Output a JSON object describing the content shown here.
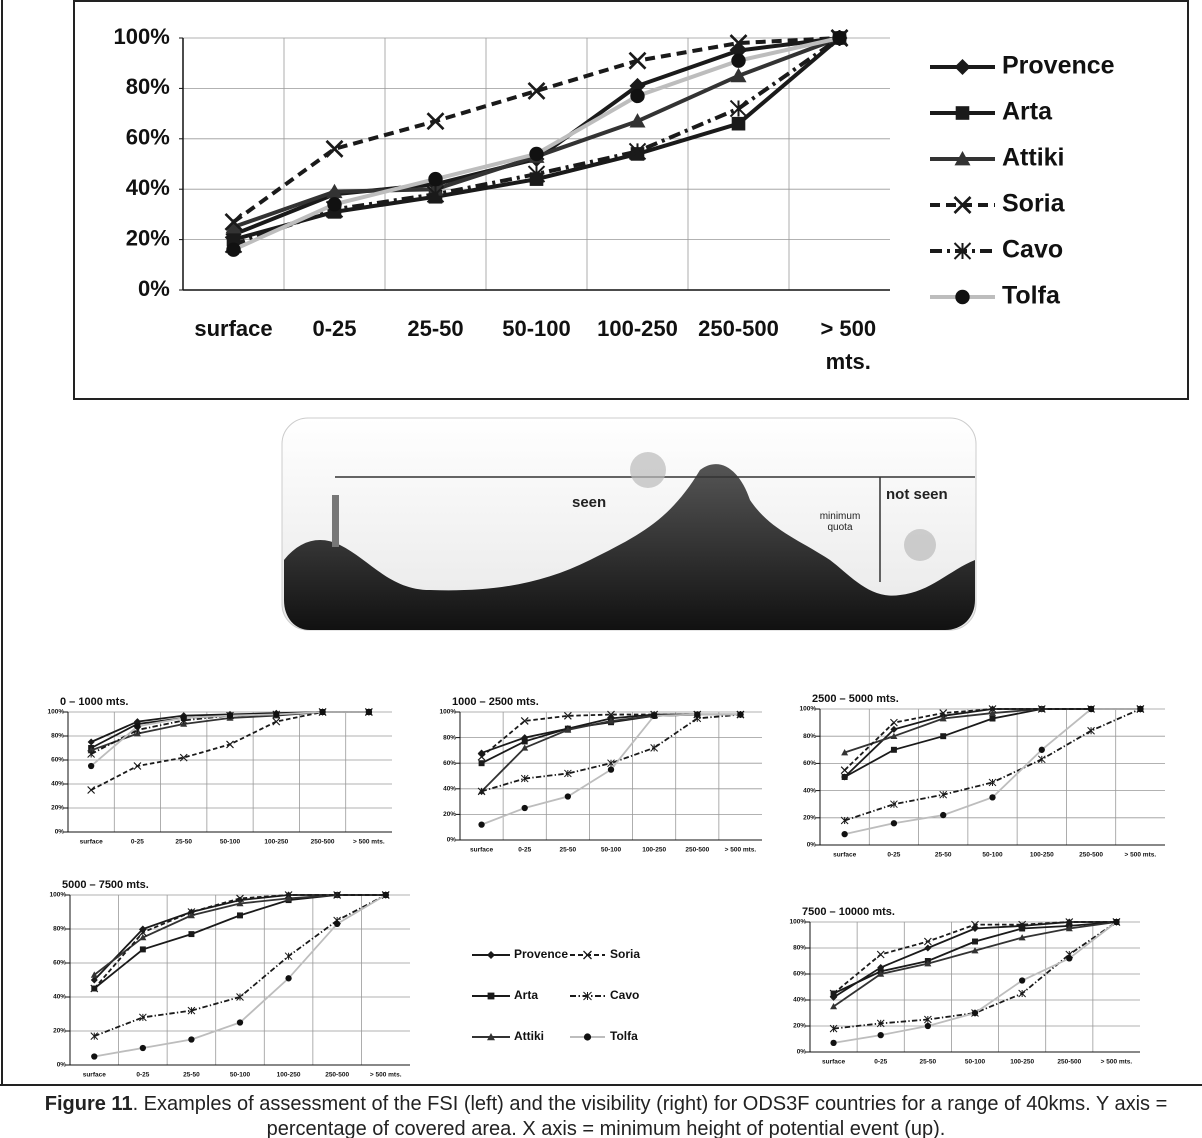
{
  "chart_data": [
    {
      "type": "line",
      "categories": [
        "surface",
        "0-25",
        "25-50",
        "50-100",
        "100-250",
        "250-500",
        "> 500 mts."
      ],
      "ylim": [
        0,
        100
      ],
      "yticks": [
        {
          "value": 0,
          "label": "0%"
        },
        {
          "value": 20,
          "label": "20%"
        },
        {
          "value": 40,
          "label": "40%"
        },
        {
          "value": 60,
          "label": "60%"
        },
        {
          "value": 80,
          "label": "80%"
        },
        {
          "value": 100,
          "label": "100%"
        }
      ],
      "grid": true,
      "legend": "right",
      "series": [
        {
          "name": "Provence",
          "color": "#1a1a1a",
          "marker": "diamond",
          "line_style": "solid",
          "values": [
            22,
            38,
            42,
            52,
            81,
            95,
            100
          ]
        },
        {
          "name": "Arta",
          "color": "#1a1a1a",
          "marker": "square",
          "line_style": "solid",
          "values": [
            20,
            31,
            37,
            44,
            54,
            66,
            100
          ]
        },
        {
          "name": "Attiki",
          "color": "#333333",
          "marker": "triangle",
          "line_style": "solid",
          "values": [
            25,
            39,
            40,
            53,
            67,
            85,
            100
          ]
        },
        {
          "name": "Soria",
          "color": "#1a1a1a",
          "marker": "x",
          "line_style": "dashed",
          "values": [
            27,
            56,
            67,
            79,
            91,
            98,
            100
          ]
        },
        {
          "name": "Cavo",
          "color": "#1a1a1a",
          "marker": "asterisk",
          "line_style": "dashdot",
          "values": [
            18,
            32,
            38,
            46,
            55,
            72,
            100
          ]
        },
        {
          "name": "Tolfa",
          "color": "#bdbdbd",
          "marker_color": "#111111",
          "marker": "circle",
          "line_style": "solid",
          "values": [
            16,
            34,
            44,
            54,
            77,
            91,
            100
          ]
        }
      ]
    },
    {
      "type": "line",
      "title": "0 – 1000 mts.",
      "categories": [
        "surface",
        "0-25",
        "25-50",
        "50-100",
        "100-250",
        "250-500",
        "> 500 mts."
      ],
      "ylim": [
        0,
        100
      ],
      "yticks": [
        {
          "value": 0,
          "label": "0%"
        },
        {
          "value": 20,
          "label": "20%"
        },
        {
          "value": 40,
          "label": "40%"
        },
        {
          "value": 60,
          "label": "60%"
        },
        {
          "value": 80,
          "label": "80%"
        },
        {
          "value": 100,
          "label": "100%"
        }
      ],
      "grid": true,
      "series": [
        {
          "name": "Provence",
          "color": "#1a1a1a",
          "marker": "diamond",
          "line_style": "solid",
          "values": [
            75,
            92,
            97,
            98,
            99,
            100,
            100
          ]
        },
        {
          "name": "Arta",
          "color": "#1a1a1a",
          "marker": "square",
          "line_style": "solid",
          "values": [
            70,
            90,
            95,
            97,
            98,
            100,
            100
          ]
        },
        {
          "name": "Attiki",
          "color": "#333333",
          "marker": "triangle",
          "line_style": "solid",
          "values": [
            68,
            82,
            90,
            95,
            97,
            100,
            100
          ]
        },
        {
          "name": "Soria",
          "color": "#1a1a1a",
          "marker": "x",
          "line_style": "dashed",
          "values": [
            35,
            55,
            62,
            73,
            92,
            100,
            100
          ]
        },
        {
          "name": "Cavo",
          "color": "#1a1a1a",
          "marker": "asterisk",
          "line_style": "dashdot",
          "values": [
            65,
            85,
            93,
            97,
            98,
            100,
            100
          ]
        },
        {
          "name": "Tolfa",
          "color": "#bdbdbd",
          "marker_color": "#111111",
          "marker": "circle",
          "line_style": "solid",
          "values": [
            55,
            88,
            95,
            97,
            98,
            100,
            100
          ]
        }
      ]
    },
    {
      "type": "line",
      "title": "1000 – 2500 mts.",
      "categories": [
        "surface",
        "0-25",
        "25-50",
        "50-100",
        "100-250",
        "250-500",
        "> 500 mts."
      ],
      "ylim": [
        0,
        100
      ],
      "yticks": [
        {
          "value": 0,
          "label": "0%"
        },
        {
          "value": 20,
          "label": "20%"
        },
        {
          "value": 40,
          "label": "40%"
        },
        {
          "value": 60,
          "label": "60%"
        },
        {
          "value": 80,
          "label": "80%"
        },
        {
          "value": 100,
          "label": "100%"
        }
      ],
      "grid": true,
      "series": [
        {
          "name": "Provence",
          "color": "#1a1a1a",
          "marker": "diamond",
          "line_style": "solid",
          "values": [
            68,
            80,
            87,
            95,
            98,
            98,
            98
          ]
        },
        {
          "name": "Arta",
          "color": "#1a1a1a",
          "marker": "square",
          "line_style": "solid",
          "values": [
            60,
            77,
            87,
            92,
            97,
            98,
            98
          ]
        },
        {
          "name": "Attiki",
          "color": "#333333",
          "marker": "triangle",
          "line_style": "solid",
          "values": [
            38,
            72,
            86,
            93,
            97,
            98,
            98
          ]
        },
        {
          "name": "Soria",
          "color": "#1a1a1a",
          "marker": "x",
          "line_style": "dashed",
          "values": [
            65,
            93,
            97,
            98,
            98,
            98,
            98
          ]
        },
        {
          "name": "Cavo",
          "color": "#1a1a1a",
          "marker": "asterisk",
          "line_style": "dashdot",
          "values": [
            38,
            48,
            52,
            60,
            72,
            95,
            98
          ]
        },
        {
          "name": "Tolfa",
          "color": "#bdbdbd",
          "marker_color": "#111111",
          "marker": "circle",
          "line_style": "solid",
          "values": [
            12,
            25,
            34,
            55,
            97,
            98,
            98
          ]
        }
      ]
    },
    {
      "type": "line",
      "title": "2500 – 5000 mts.",
      "categories": [
        "surface",
        "0-25",
        "25-50",
        "50-100",
        "100-250",
        "250-500",
        "> 500 mts."
      ],
      "ylim": [
        0,
        100
      ],
      "yticks": [
        {
          "value": 0,
          "label": "0%"
        },
        {
          "value": 20,
          "label": "20%"
        },
        {
          "value": 40,
          "label": "40%"
        },
        {
          "value": 60,
          "label": "60%"
        },
        {
          "value": 80,
          "label": "80%"
        },
        {
          "value": 100,
          "label": "100%"
        }
      ],
      "grid": true,
      "series": [
        {
          "name": "Provence",
          "color": "#1a1a1a",
          "marker": "diamond",
          "line_style": "solid",
          "values": [
            50,
            85,
            95,
            100,
            100,
            100,
            100
          ]
        },
        {
          "name": "Arta",
          "color": "#1a1a1a",
          "marker": "square",
          "line_style": "solid",
          "values": [
            50,
            70,
            80,
            93,
            100,
            100,
            100
          ]
        },
        {
          "name": "Attiki",
          "color": "#333333",
          "marker": "triangle",
          "line_style": "solid",
          "values": [
            68,
            80,
            93,
            97,
            100,
            100,
            100
          ]
        },
        {
          "name": "Soria",
          "color": "#1a1a1a",
          "marker": "x",
          "line_style": "dashed",
          "values": [
            55,
            90,
            97,
            100,
            100,
            100,
            100
          ]
        },
        {
          "name": "Cavo",
          "color": "#1a1a1a",
          "marker": "asterisk",
          "line_style": "dashdot",
          "values": [
            18,
            30,
            37,
            46,
            63,
            84,
            100
          ]
        },
        {
          "name": "Tolfa",
          "color": "#bdbdbd",
          "marker_color": "#111111",
          "marker": "circle",
          "line_style": "solid",
          "values": [
            8,
            16,
            22,
            35,
            70,
            100,
            100
          ]
        }
      ]
    },
    {
      "type": "line",
      "title": "5000 – 7500 mts.",
      "categories": [
        "surface",
        "0-25",
        "25-50",
        "50-100",
        "100-250",
        "250-500",
        "> 500 mts."
      ],
      "ylim": [
        0,
        100
      ],
      "yticks": [
        {
          "value": 0,
          "label": "0%"
        },
        {
          "value": 20,
          "label": "20%"
        },
        {
          "value": 40,
          "label": "40%"
        },
        {
          "value": 60,
          "label": "60%"
        },
        {
          "value": 80,
          "label": "80%"
        },
        {
          "value": 100,
          "label": "100%"
        }
      ],
      "grid": true,
      "series": [
        {
          "name": "Provence",
          "color": "#1a1a1a",
          "marker": "diamond",
          "line_style": "solid",
          "values": [
            50,
            80,
            90,
            97,
            100,
            100,
            100
          ]
        },
        {
          "name": "Arta",
          "color": "#1a1a1a",
          "marker": "square",
          "line_style": "solid",
          "values": [
            45,
            68,
            77,
            88,
            97,
            100,
            100
          ]
        },
        {
          "name": "Attiki",
          "color": "#333333",
          "marker": "triangle",
          "line_style": "solid",
          "values": [
            53,
            75,
            88,
            95,
            98,
            100,
            100
          ]
        },
        {
          "name": "Soria",
          "color": "#1a1a1a",
          "marker": "x",
          "line_style": "dashed",
          "values": [
            45,
            78,
            90,
            98,
            100,
            100,
            100
          ]
        },
        {
          "name": "Cavo",
          "color": "#1a1a1a",
          "marker": "asterisk",
          "line_style": "dashdot",
          "values": [
            17,
            28,
            32,
            40,
            64,
            85,
            100
          ]
        },
        {
          "name": "Tolfa",
          "color": "#bdbdbd",
          "marker_color": "#111111",
          "marker": "circle",
          "line_style": "solid",
          "values": [
            5,
            10,
            15,
            25,
            51,
            83,
            100
          ]
        }
      ]
    },
    {
      "type": "line",
      "title": "7500 – 10000 mts.",
      "categories": [
        "surface",
        "0-25",
        "25-50",
        "50-100",
        "100-250",
        "250-500",
        "> 500 mts."
      ],
      "ylim": [
        0,
        100
      ],
      "yticks": [
        {
          "value": 0,
          "label": "0%"
        },
        {
          "value": 20,
          "label": "20%"
        },
        {
          "value": 40,
          "label": "40%"
        },
        {
          "value": 60,
          "label": "60%"
        },
        {
          "value": 80,
          "label": "80%"
        },
        {
          "value": 100,
          "label": "100%"
        }
      ],
      "grid": true,
      "series": [
        {
          "name": "Provence",
          "color": "#1a1a1a",
          "marker": "diamond",
          "line_style": "solid",
          "values": [
            42,
            65,
            80,
            95,
            97,
            100,
            100
          ]
        },
        {
          "name": "Arta",
          "color": "#1a1a1a",
          "marker": "square",
          "line_style": "solid",
          "values": [
            45,
            62,
            70,
            85,
            95,
            97,
            100
          ]
        },
        {
          "name": "Attiki",
          "color": "#333333",
          "marker": "triangle",
          "line_style": "solid",
          "values": [
            35,
            60,
            68,
            78,
            88,
            95,
            100
          ]
        },
        {
          "name": "Soria",
          "color": "#1a1a1a",
          "marker": "x",
          "line_style": "dashed",
          "values": [
            45,
            75,
            85,
            98,
            98,
            100,
            100
          ]
        },
        {
          "name": "Cavo",
          "color": "#1a1a1a",
          "marker": "asterisk",
          "line_style": "dashdot",
          "values": [
            18,
            22,
            25,
            30,
            45,
            75,
            100
          ]
        },
        {
          "name": "Tolfa",
          "color": "#bdbdbd",
          "marker_color": "#111111",
          "marker": "circle",
          "line_style": "solid",
          "values": [
            7,
            13,
            20,
            30,
            55,
            72,
            100
          ]
        }
      ]
    }
  ],
  "diagram": {
    "labels": [
      "seen",
      "not seen",
      "minimum quota"
    ]
  },
  "caption": {
    "label": "Figure 11",
    "text": ". Examples of assessment of the FSI (left) and the visibility (right) for ODS3F countries for a range of 40kms. Y axis = percentage of covered area. X axis = minimum height of potential event (up)."
  }
}
